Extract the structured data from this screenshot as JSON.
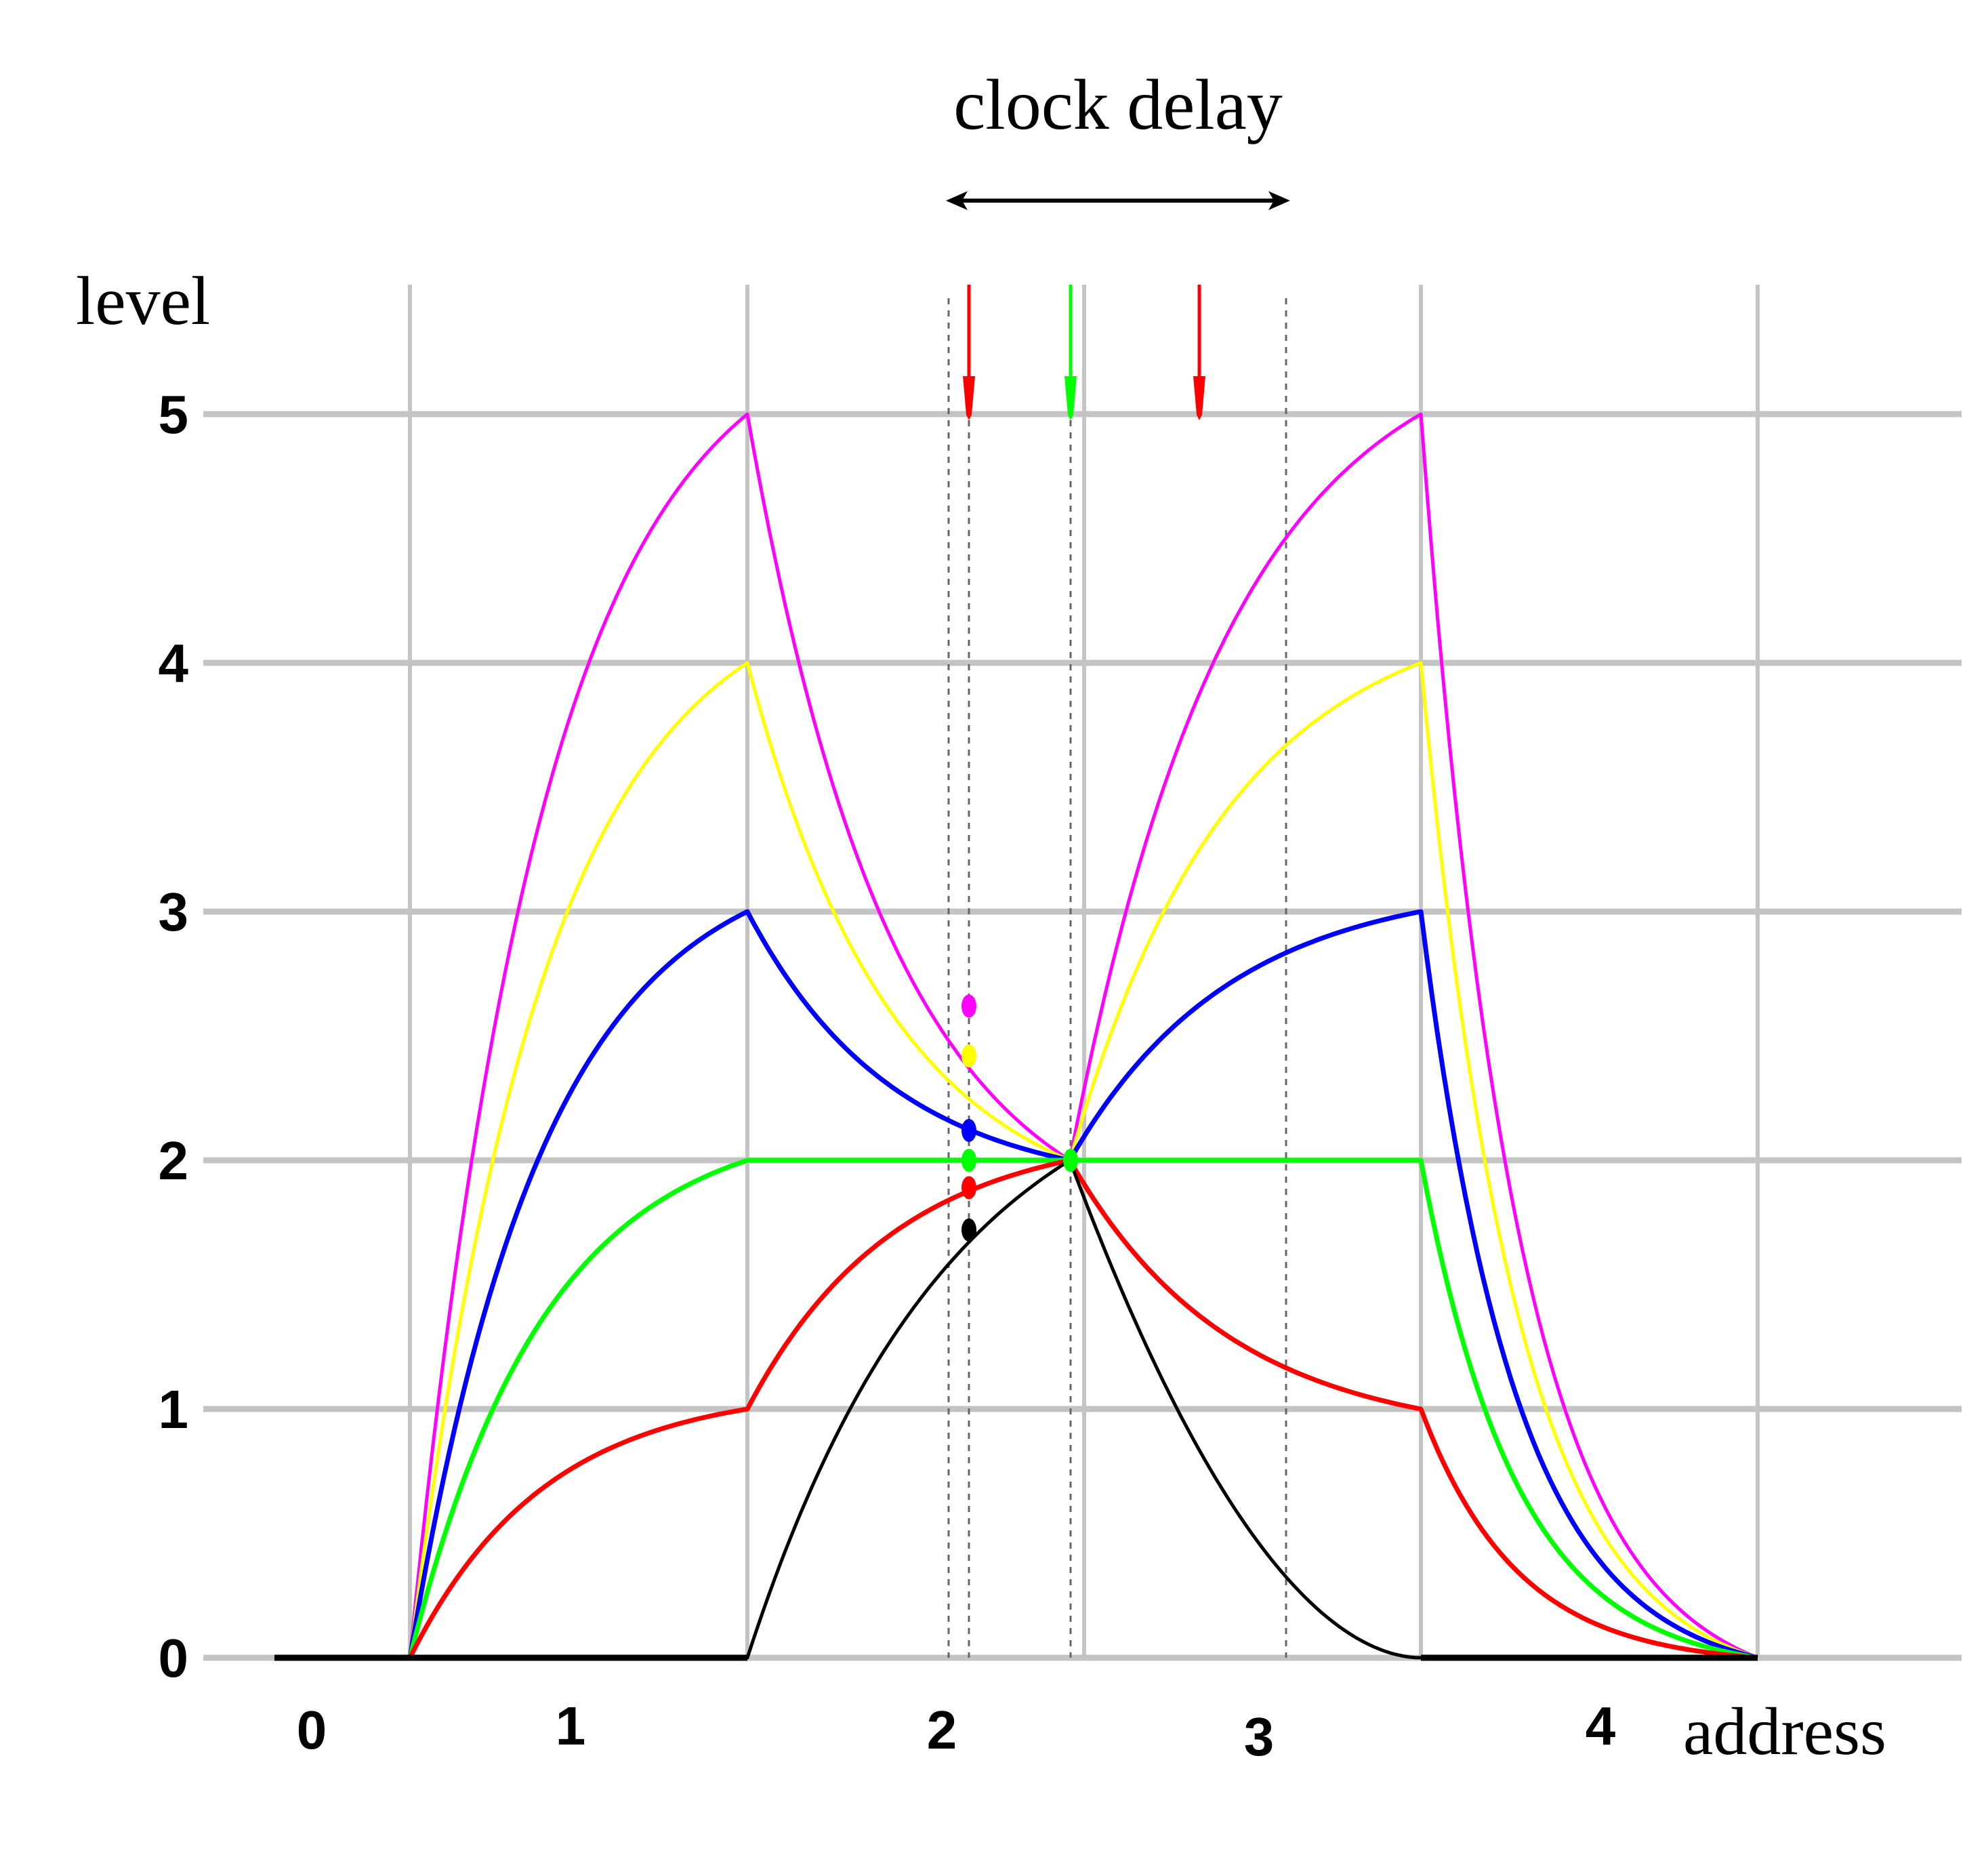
{
  "chart_data": {
    "type": "line",
    "title": "clock  delay",
    "xlabel": "address",
    "ylabel": "level",
    "x_tick_labels": [
      "0",
      "1",
      "2",
      "3",
      "4"
    ],
    "y_tick_labels": [
      "0",
      "1",
      "2",
      "3",
      "4",
      "5"
    ],
    "ylim": [
      0,
      5
    ],
    "grid": true,
    "legend": "none",
    "series": [
      {
        "color": "#ff00ff",
        "values": [
          0,
          5,
          2,
          5,
          0
        ]
      },
      {
        "color": "#ffff00",
        "values": [
          0,
          4,
          2,
          4,
          0
        ]
      },
      {
        "color": "#0000ff",
        "values": [
          0,
          3,
          2,
          3,
          0
        ]
      },
      {
        "color": "#00ff00",
        "values": [
          0,
          2,
          2,
          2,
          0
        ]
      },
      {
        "color": "#ff0000",
        "values": [
          0,
          1,
          2,
          1,
          0
        ]
      },
      {
        "color": "#000000",
        "values": [
          0,
          0,
          2,
          0,
          0
        ]
      }
    ],
    "clock_markers": [
      {
        "color": "#ff0000",
        "x": 2.08
      },
      {
        "color": "#00ff00",
        "x": 2.38
      },
      {
        "color": "#ff0000",
        "x": 2.76
      }
    ],
    "sample_points": [
      {
        "color": "#ff00ff",
        "x": 2.08,
        "y": 2.62
      },
      {
        "color": "#ffff00",
        "x": 2.08,
        "y": 2.42
      },
      {
        "color": "#0000ff",
        "x": 2.08,
        "y": 2.12
      },
      {
        "color": "#00ff00",
        "x": 2.08,
        "y": 2.0
      },
      {
        "color": "#ff0000",
        "x": 2.08,
        "y": 1.89
      },
      {
        "color": "#000000",
        "x": 2.08,
        "y": 1.72
      },
      {
        "color": "#00ff00",
        "x": 2.38,
        "y": 2.0
      }
    ]
  }
}
